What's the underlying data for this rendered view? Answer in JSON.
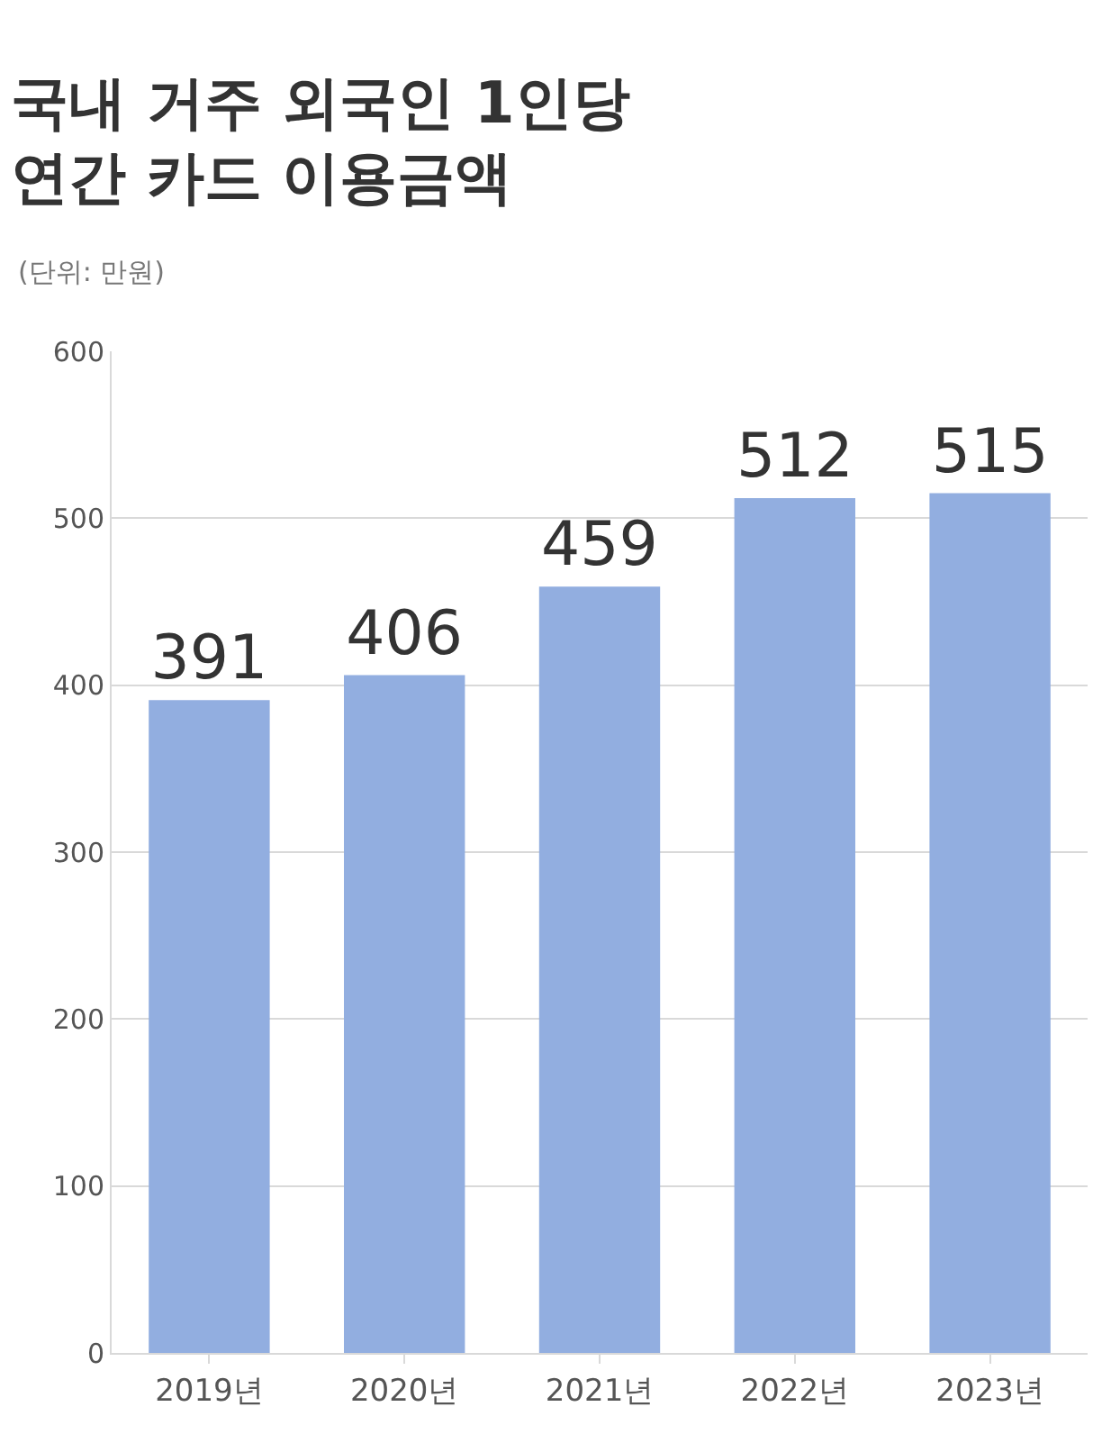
{
  "chart_data": {
    "type": "bar",
    "title": "국내 거주 외국인 1인당\n연간 카드 이용금액",
    "subtitle": "(단위: 만원)",
    "categories": [
      "2019년",
      "2020년",
      "2021년",
      "2022년",
      "2023년"
    ],
    "values": [
      391,
      406,
      459,
      512,
      515
    ],
    "color": "#92aee0",
    "ylim": [
      0,
      600
    ],
    "yticks": [
      0,
      100,
      200,
      300,
      400,
      500,
      600
    ],
    "grid": "y",
    "data_labels": true,
    "legend": false
  }
}
